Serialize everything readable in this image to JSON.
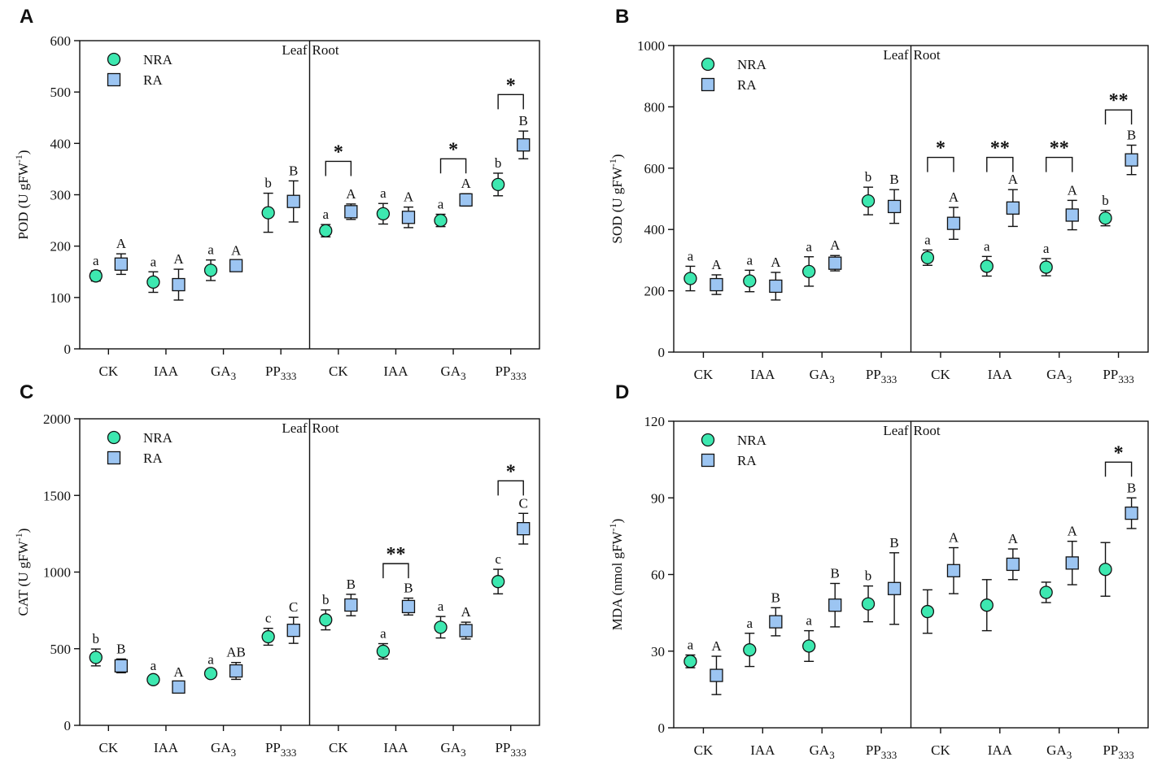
{
  "colors": {
    "nra_fill": "#3de8b0",
    "ra_fill": "#9cc5f2",
    "stroke": "#111111"
  },
  "chart_data": [
    {
      "panel": "A",
      "type": "scatter",
      "ylabel_main": "POD (U gFW",
      "ylabel_sup": "-1",
      "ylabel_end": ")",
      "ylim": [
        0,
        600
      ],
      "yticks": [
        0,
        100,
        200,
        300,
        400,
        500,
        600
      ],
      "categories": [
        "CK",
        "IAA",
        "GA",
        "PP",
        "CK",
        "IAA",
        "GA",
        "PP"
      ],
      "category_subscripts": [
        "",
        "",
        "3",
        "333",
        "",
        "",
        "3",
        "333"
      ],
      "sections": [
        "Leaf",
        "Root"
      ],
      "legend": [
        "NRA",
        "RA"
      ],
      "series": [
        {
          "name": "NRA",
          "values": [
            142,
            130,
            153,
            265,
            230,
            263,
            250,
            320
          ],
          "err": [
            10,
            20,
            20,
            38,
            12,
            20,
            12,
            22
          ],
          "letters": [
            "a",
            "a",
            "a",
            "b",
            "a",
            "a",
            "a",
            "b"
          ]
        },
        {
          "name": "RA",
          "values": [
            165,
            125,
            162,
            287,
            267,
            256,
            290,
            397
          ],
          "err": [
            20,
            30,
            10,
            40,
            15,
            20,
            12,
            27
          ],
          "letters": [
            "A",
            "A",
            "A",
            "B",
            "A",
            "A",
            "A",
            "B"
          ]
        }
      ],
      "significance": [
        {
          "group": 4,
          "mark": "*",
          "level": 365
        },
        {
          "group": 6,
          "mark": "*",
          "level": 370
        },
        {
          "group": 7,
          "mark": "*",
          "level": 495
        }
      ]
    },
    {
      "panel": "B",
      "type": "scatter",
      "ylabel_main": "SOD (U gFW",
      "ylabel_sup": "-1",
      "ylabel_end": ")",
      "ylim": [
        0,
        1000
      ],
      "yticks": [
        0,
        200,
        400,
        600,
        800,
        1000
      ],
      "categories": [
        "CK",
        "IAA",
        "GA",
        "PP",
        "CK",
        "IAA",
        "GA",
        "PP"
      ],
      "category_subscripts": [
        "",
        "",
        "3",
        "333",
        "",
        "",
        "3",
        "333"
      ],
      "sections": [
        "Leaf",
        "Root"
      ],
      "legend": [
        "NRA",
        "RA"
      ],
      "series": [
        {
          "name": "NRA",
          "values": [
            240,
            232,
            263,
            493,
            308,
            280,
            277,
            437
          ],
          "err": [
            40,
            35,
            48,
            45,
            25,
            32,
            28,
            25
          ],
          "letters": [
            "a",
            "a",
            "a",
            "b",
            "a",
            "a",
            "a",
            "b"
          ]
        },
        {
          "name": "RA",
          "values": [
            220,
            215,
            290,
            475,
            420,
            470,
            447,
            627
          ],
          "err": [
            32,
            45,
            25,
            55,
            52,
            60,
            48,
            48
          ],
          "letters": [
            "A",
            "A",
            "A",
            "B",
            "A",
            "A",
            "A",
            "B"
          ]
        }
      ],
      "significance": [
        {
          "group": 4,
          "mark": "*",
          "level": 635
        },
        {
          "group": 5,
          "mark": "**",
          "level": 635
        },
        {
          "group": 6,
          "mark": "**",
          "level": 635
        },
        {
          "group": 7,
          "mark": "**",
          "level": 790
        }
      ]
    },
    {
      "panel": "C",
      "type": "scatter",
      "ylabel_main": "CAT (U gFW",
      "ylabel_sup": "-1",
      "ylabel_end": ")",
      "ylim": [
        0,
        2000
      ],
      "yticks": [
        0,
        500,
        1000,
        1500,
        2000
      ],
      "categories": [
        "CK",
        "IAA",
        "GA",
        "PP",
        "CK",
        "IAA",
        "GA",
        "PP"
      ],
      "category_subscripts": [
        "",
        "",
        "3",
        "333",
        "",
        "",
        "3",
        "333"
      ],
      "sections": [
        "Leaf",
        "Root"
      ],
      "legend": [
        "NRA",
        "RA"
      ],
      "series": [
        {
          "name": "NRA",
          "values": [
            443,
            298,
            338,
            578,
            688,
            483,
            640,
            938
          ],
          "err": [
            55,
            25,
            25,
            55,
            65,
            50,
            70,
            80
          ],
          "letters": [
            "b",
            "a",
            "a",
            "c",
            "b",
            "a",
            "a",
            "c"
          ]
        },
        {
          "name": "RA",
          "values": [
            388,
            250,
            355,
            620,
            785,
            775,
            618,
            1283
          ],
          "err": [
            45,
            30,
            55,
            85,
            70,
            55,
            55,
            100
          ],
          "letters": [
            "B",
            "A",
            "AB",
            "C",
            "B",
            "B",
            "A",
            "C"
          ]
        }
      ],
      "significance": [
        {
          "group": 5,
          "mark": "**",
          "level": 1055
        },
        {
          "group": 7,
          "mark": "*",
          "level": 1595
        }
      ]
    },
    {
      "panel": "D",
      "type": "scatter",
      "ylabel_main": "MDA (nmol gFW",
      "ylabel_sup": "-1",
      "ylabel_end": ")",
      "ylim": [
        0,
        120
      ],
      "yticks": [
        0,
        30,
        60,
        90,
        120
      ],
      "categories": [
        "CK",
        "IAA",
        "GA",
        "PP",
        "CK",
        "IAA",
        "GA",
        "PP"
      ],
      "category_subscripts": [
        "",
        "",
        "3",
        "333",
        "",
        "",
        "3",
        "333"
      ],
      "sections": [
        "Leaf",
        "Root"
      ],
      "legend": [
        "NRA",
        "RA"
      ],
      "series": [
        {
          "name": "NRA",
          "values": [
            26,
            30.5,
            32,
            48.5,
            45.5,
            48,
            53,
            62
          ],
          "err": [
            2.5,
            6.5,
            6,
            7,
            8.5,
            10,
            4,
            10.5
          ],
          "letters": [
            "a",
            "a",
            "a",
            "b",
            "",
            "",
            "",
            ""
          ]
        },
        {
          "name": "RA",
          "values": [
            20.5,
            41.5,
            48,
            54.5,
            61.5,
            64,
            64.5,
            84
          ],
          "err": [
            7.5,
            5.5,
            8.5,
            14,
            9,
            6,
            8.5,
            6
          ],
          "letters": [
            "A",
            "B",
            "B",
            "B",
            "A",
            "A",
            "A",
            "B"
          ]
        }
      ],
      "significance": [
        {
          "group": 7,
          "mark": "*",
          "level": 104
        }
      ]
    }
  ]
}
